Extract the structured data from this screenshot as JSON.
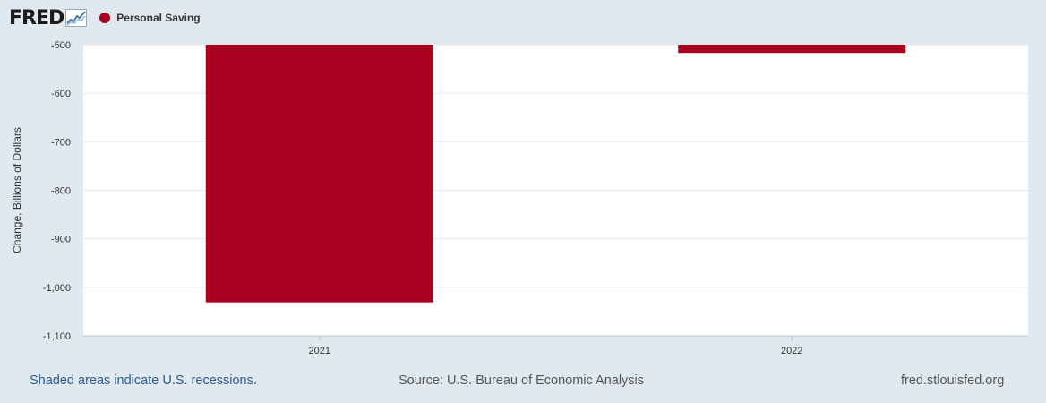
{
  "header": {
    "logo_text": "FRED",
    "logo_icon": "line-graph-icon",
    "legend_label": "Personal Saving"
  },
  "colors": {
    "series": "#a8001e",
    "plot_bg": "#ffffff",
    "page_bg": "#e1e9f0",
    "grid": "#e6e6e6"
  },
  "chart_data": {
    "type": "bar",
    "categories": [
      "2021",
      "2022"
    ],
    "series": [
      {
        "name": "Personal Saving",
        "values": [
          -1031,
          -517
        ]
      }
    ],
    "ylabel": "Change, Billions of Dollars",
    "ylim": [
      -1100,
      -500
    ],
    "yticks": [
      -500,
      -600,
      -700,
      -800,
      -900,
      -1000,
      -1100
    ],
    "ytick_labels": [
      "-500",
      "-600",
      "-700",
      "-800",
      "-900",
      "-1,000",
      "-1,100"
    ],
    "grid": true
  },
  "footer": {
    "recessions_note": "Shaded areas indicate U.S. recessions.",
    "source": "Source: U.S. Bureau of Economic Analysis",
    "site": "fred.stlouisfed.org"
  }
}
